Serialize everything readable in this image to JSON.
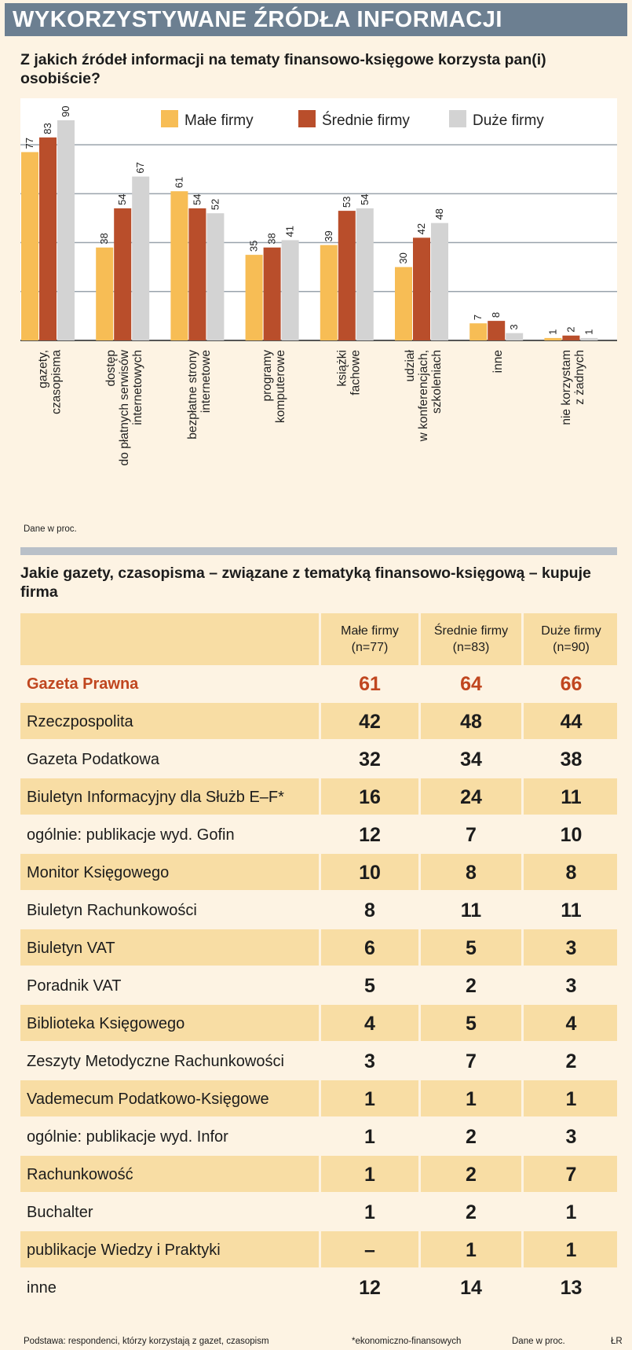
{
  "title": "WYKORZYSTYWANE ŹRÓDŁA INFORMACJI",
  "question1": "Z jakich źródeł informacji na tematy finansowo-księgowe korzysta pan(i) osobiście?",
  "chart_note": "Dane w proc.",
  "colors": {
    "small": "#f7bd55",
    "medium": "#b94e2b",
    "large": "#d3d3d3",
    "header": "#6c7f91",
    "highlight": "#c0461f"
  },
  "chart_data": {
    "type": "bar",
    "categories": [
      [
        "gazety,",
        "czasopisma"
      ],
      [
        "dostęp",
        "do płatnych serwisów",
        "internetowych"
      ],
      [
        "bezpłatne strony",
        "internetowe"
      ],
      [
        "programy",
        "komputerowe"
      ],
      [
        "książki",
        "fachowe"
      ],
      [
        "udział",
        "w konferencjach,",
        "szkoleniach"
      ],
      [
        "inne"
      ],
      [
        "nie korzystam",
        "z żadnych"
      ]
    ],
    "series": [
      {
        "name": "Małe firmy",
        "values": [
          77,
          38,
          61,
          35,
          39,
          30,
          7,
          1
        ]
      },
      {
        "name": "Średnie firmy",
        "values": [
          83,
          54,
          54,
          38,
          53,
          42,
          8,
          2
        ]
      },
      {
        "name": "Duże firmy",
        "values": [
          90,
          67,
          52,
          41,
          54,
          48,
          3,
          1
        ]
      }
    ],
    "ylim": [
      0,
      100
    ],
    "grid": true,
    "legend": "top-right"
  },
  "question2": "Jakie gazety, czasopisma – związane z tematyką finansowo-księgową – kupuje firma",
  "table": {
    "columns": [
      [
        "Małe firmy",
        "(n=77)"
      ],
      [
        "Średnie firmy",
        "(n=83)"
      ],
      [
        "Duże firmy",
        "(n=90)"
      ]
    ],
    "rows": [
      {
        "name": "Gazeta Prawna",
        "values": [
          "61",
          "64",
          "66"
        ]
      },
      {
        "name": "Rzeczpospolita",
        "values": [
          "42",
          "48",
          "44"
        ]
      },
      {
        "name": "Gazeta Podatkowa",
        "values": [
          "32",
          "34",
          "38"
        ]
      },
      {
        "name": "Biuletyn Informacyjny dla Służb E–F*",
        "values": [
          "16",
          "24",
          "11"
        ]
      },
      {
        "name": "ogólnie: publikacje wyd. Gofin",
        "values": [
          "12",
          "7",
          "10"
        ]
      },
      {
        "name": "Monitor Księgowego",
        "values": [
          "10",
          "8",
          "8"
        ]
      },
      {
        "name": "Biuletyn Rachunkowości",
        "values": [
          "8",
          "11",
          "11"
        ]
      },
      {
        "name": "Biuletyn VAT",
        "values": [
          "6",
          "5",
          "3"
        ]
      },
      {
        "name": "Poradnik VAT",
        "values": [
          "5",
          "2",
          "3"
        ]
      },
      {
        "name": "Biblioteka Księgowego",
        "values": [
          "4",
          "5",
          "4"
        ]
      },
      {
        "name": "Zeszyty Metodyczne Rachunkowości",
        "values": [
          "3",
          "7",
          "2"
        ]
      },
      {
        "name": "Vademecum Podatkowo-Księgowe",
        "values": [
          "1",
          "1",
          "1"
        ]
      },
      {
        "name": "ogólnie: publikacje wyd. Infor",
        "values": [
          "1",
          "2",
          "3"
        ]
      },
      {
        "name": "Rachunkowość",
        "values": [
          "1",
          "2",
          "7"
        ]
      },
      {
        "name": "Buchalter",
        "values": [
          "1",
          "2",
          "1"
        ]
      },
      {
        "name": "publikacje Wiedzy i Praktyki",
        "values": [
          "–",
          "1",
          "1"
        ]
      },
      {
        "name": "inne",
        "values": [
          "12",
          "14",
          "13"
        ]
      }
    ]
  },
  "footer": {
    "basis": "Podstawa: respondenci, którzy korzystają z gazet, czasopism",
    "footnote": "*ekonomiczno-finansowych",
    "data_note": "Dane w proc.",
    "author": "ŁR"
  }
}
